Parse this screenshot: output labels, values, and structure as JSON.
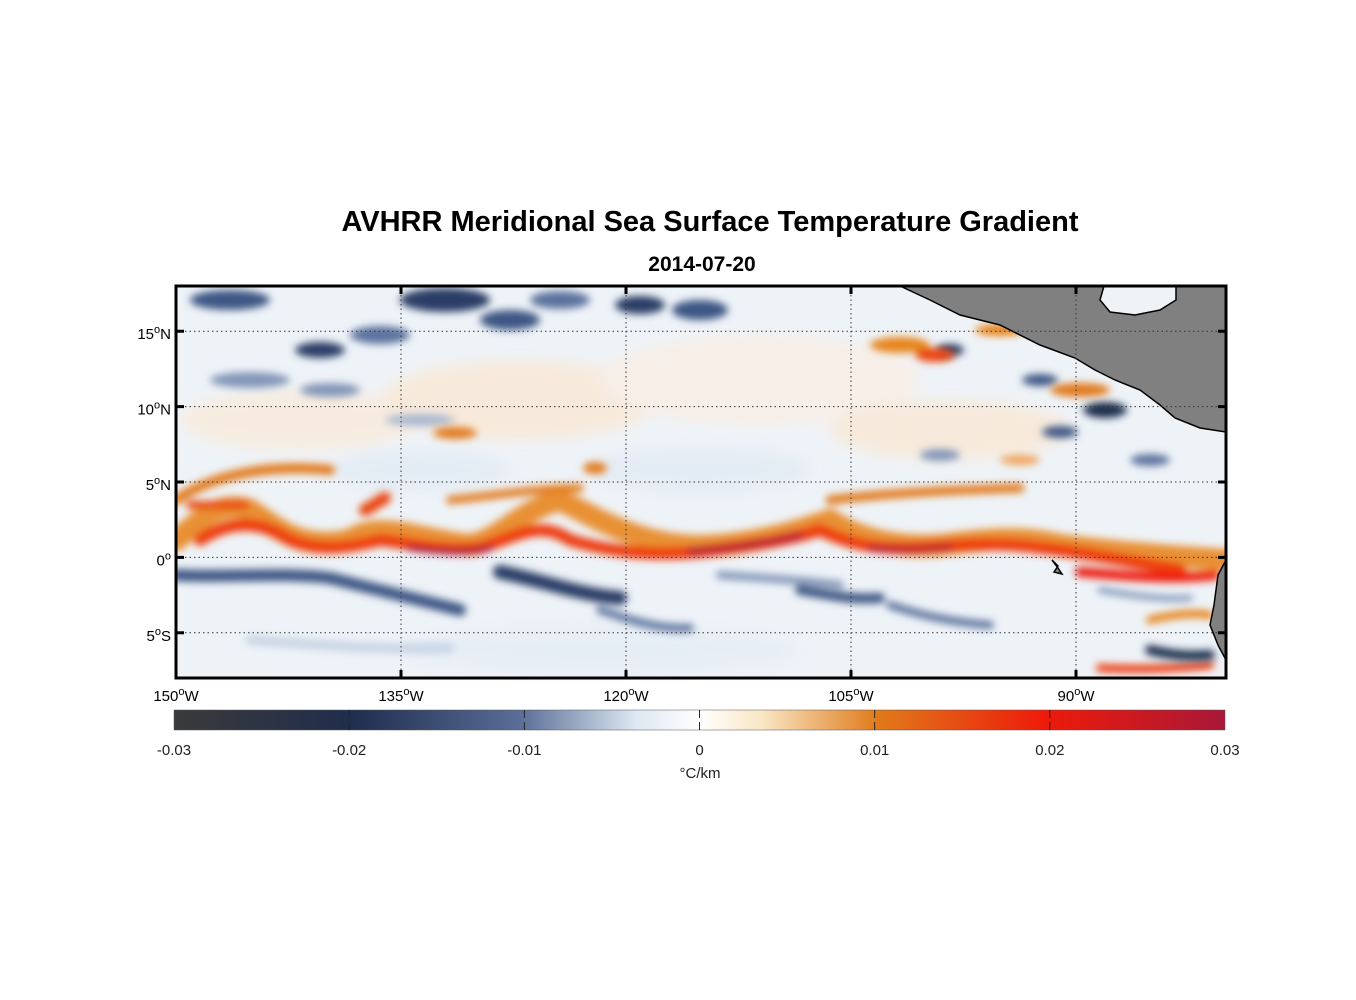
{
  "title": "AVHRR Meridional Sea Surface Temperature Gradient",
  "subtitle": "2014-07-20",
  "map": {
    "lon_range": [
      -150,
      -80
    ],
    "lat_range": [
      -8,
      18
    ],
    "lat_labels": [
      {
        "lat": 15,
        "deg": "15",
        "hemi": "N"
      },
      {
        "lat": 10,
        "deg": "10",
        "hemi": "N"
      },
      {
        "lat": 5,
        "deg": "5",
        "hemi": "N"
      },
      {
        "lat": 0,
        "deg": "0",
        "hemi": ""
      },
      {
        "lat": -5,
        "deg": "5",
        "hemi": "S"
      }
    ],
    "lon_labels": [
      {
        "lon": -150,
        "deg": "150",
        "hemi": "W"
      },
      {
        "lon": -135,
        "deg": "135",
        "hemi": "W"
      },
      {
        "lon": -120,
        "deg": "120",
        "hemi": "W"
      },
      {
        "lon": -105,
        "deg": "105",
        "hemi": "W"
      },
      {
        "lon": -90,
        "deg": "90",
        "hemi": "W"
      }
    ],
    "grid": "dotted",
    "land_color": "#808080"
  },
  "colorbar": {
    "range": [
      -0.03,
      0.03
    ],
    "ticks": [
      "-0.03",
      "-0.02",
      "-0.01",
      "0",
      "0.01",
      "0.02",
      "0.03"
    ],
    "tick_values": [
      -0.03,
      -0.02,
      -0.01,
      0,
      0.01,
      0.02,
      0.03
    ],
    "unit_label": "°C/km",
    "colors": [
      "#3a3a3a",
      "#1f2d4e",
      "#5a6e98",
      "#dde8f2",
      "#ffffff",
      "#f9e6c4",
      "#e07a1a",
      "#ee1a0a",
      "#a81838"
    ]
  }
}
